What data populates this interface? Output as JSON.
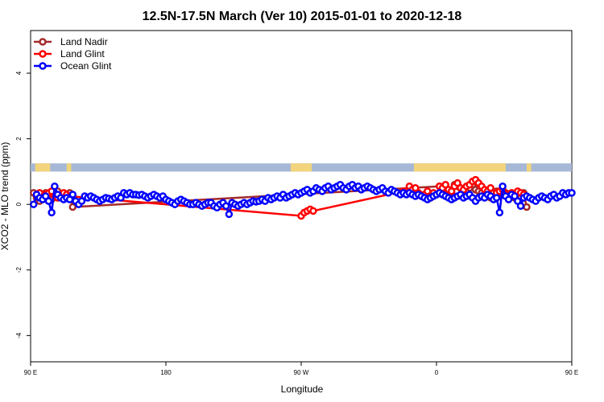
{
  "chart_data": {
    "type": "line",
    "title": "12.5N-17.5N March (Ver 10)   2015-01-01 to 2020-12-18",
    "xlabel": "Longitude",
    "ylabel": "XCO2 - MLO trend (ppm)",
    "xlim": [
      90,
      450
    ],
    "ylim": [
      -4.8,
      5.3
    ],
    "x_ticks": [
      {
        "value": 90,
        "label": "90 E"
      },
      {
        "value": 180,
        "label": "180"
      },
      {
        "value": 270,
        "label": "90 W"
      },
      {
        "value": 360,
        "label": "0"
      },
      {
        "value": 450,
        "label": "90 E"
      },
      {
        "value": 540,
        "label": "180"
      }
    ],
    "y_ticks": [
      {
        "value": 4,
        "label": "4"
      },
      {
        "value": 2,
        "label": "2"
      },
      {
        "value": 0,
        "label": "0"
      },
      {
        "value": -2,
        "label": "-2"
      },
      {
        "value": -4,
        "label": "-4"
      }
    ],
    "legend_position": "top-left",
    "series": [
      {
        "name": "Land Nadir",
        "color": "#a52a2a",
        "x": [
          92,
          94,
          96,
          98,
          100,
          102,
          104,
          106,
          108,
          110,
          116,
          118,
          362,
          364,
          366,
          368,
          370,
          372,
          374,
          376,
          378,
          380,
          382,
          384,
          386,
          388,
          390,
          392,
          394,
          396,
          398,
          400,
          402,
          404,
          406,
          408,
          410,
          412,
          414,
          416,
          418,
          420
        ],
        "y": [
          0.35,
          0.2,
          0.1,
          0.3,
          0.35,
          0.2,
          0.15,
          0.35,
          0.4,
          0.3,
          0.35,
          -0.08,
          0.55,
          0.45,
          0.5,
          0.4,
          0.35,
          0.6,
          0.55,
          0.5,
          0.45,
          0.55,
          0.5,
          0.6,
          0.45,
          0.4,
          0.35,
          0.3,
          0.25,
          0.2,
          0.35,
          0.4,
          0.25,
          0.3,
          0.35,
          0.3,
          0.3,
          0.2,
          0.15,
          0.2,
          0.35,
          -0.08
        ]
      },
      {
        "name": "Land Glint",
        "color": "#ff0000",
        "x": [
          94,
          96,
          98,
          100,
          102,
          104,
          106,
          108,
          110,
          112,
          114,
          116,
          270,
          272,
          274,
          276,
          278,
          338,
          342,
          344,
          346,
          348,
          350,
          352,
          354,
          356,
          358,
          360,
          362,
          364,
          366,
          368,
          370,
          372,
          374,
          376,
          378,
          380,
          382,
          384,
          386,
          388,
          390,
          392,
          394,
          396,
          400,
          402,
          404,
          406,
          408,
          410,
          412,
          414,
          416,
          418
        ],
        "y": [
          0.3,
          0.35,
          0.2,
          0.3,
          0.35,
          0.4,
          0.25,
          0.2,
          0.3,
          0.35,
          0.3,
          0.25,
          -0.35,
          -0.25,
          -0.2,
          -0.15,
          -0.2,
          0.4,
          0.55,
          0.45,
          0.5,
          0.35,
          0.25,
          0.3,
          0.4,
          0.2,
          0.35,
          0.3,
          0.55,
          0.5,
          0.6,
          0.45,
          0.4,
          0.55,
          0.65,
          0.5,
          0.45,
          0.55,
          0.6,
          0.7,
          0.75,
          0.65,
          0.55,
          0.45,
          0.4,
          0.5,
          0.35,
          0.4,
          0.45,
          0.3,
          0.25,
          0.35,
          0.3,
          0.4,
          0.35,
          0.3
        ]
      },
      {
        "name": "Ocean Glint",
        "color": "#0000ff",
        "x": [
          92,
          94,
          96,
          98,
          100,
          102,
          104,
          106,
          108,
          110,
          112,
          114,
          116,
          118,
          120,
          122,
          124,
          126,
          128,
          130,
          132,
          134,
          136,
          138,
          140,
          142,
          144,
          146,
          148,
          150,
          152,
          154,
          156,
          158,
          160,
          162,
          164,
          166,
          168,
          170,
          172,
          174,
          176,
          178,
          180,
          182,
          184,
          186,
          188,
          190,
          192,
          194,
          196,
          198,
          200,
          202,
          204,
          206,
          208,
          210,
          212,
          214,
          216,
          218,
          220,
          222,
          224,
          226,
          228,
          230,
          232,
          234,
          236,
          238,
          240,
          242,
          244,
          246,
          248,
          250,
          252,
          254,
          256,
          258,
          260,
          262,
          264,
          266,
          268,
          270,
          272,
          274,
          276,
          278,
          280,
          282,
          284,
          286,
          288,
          290,
          292,
          294,
          296,
          298,
          300,
          302,
          304,
          306,
          308,
          310,
          312,
          314,
          316,
          318,
          320,
          322,
          324,
          326,
          328,
          330,
          332,
          334,
          336,
          338,
          340,
          342,
          344,
          346,
          348,
          350,
          352,
          354,
          356,
          358,
          360,
          362,
          364,
          366,
          368,
          370,
          372,
          374,
          376,
          378,
          380,
          382,
          384,
          386,
          388,
          390,
          392,
          394,
          396,
          398,
          400,
          402,
          404,
          406,
          408,
          410,
          412,
          414,
          416,
          418,
          420,
          422,
          424,
          426,
          428,
          430,
          432,
          434,
          436,
          438,
          440,
          442,
          444,
          446,
          448,
          450
        ],
        "y": [
          0.0,
          0.3,
          0.2,
          0.15,
          0.25,
          0.1,
          -0.25,
          0.55,
          0.3,
          0.2,
          0.15,
          0.2,
          0.15,
          0.3,
          0.1,
          0.0,
          0.1,
          0.25,
          0.2,
          0.25,
          0.2,
          0.15,
          0.1,
          0.15,
          0.2,
          0.18,
          0.15,
          0.2,
          0.25,
          0.2,
          0.35,
          0.3,
          0.35,
          0.3,
          0.3,
          0.28,
          0.3,
          0.25,
          0.2,
          0.25,
          0.3,
          0.25,
          0.2,
          0.25,
          0.15,
          0.1,
          0.05,
          0.0,
          0.1,
          0.15,
          0.1,
          0.05,
          0.0,
          0.0,
          0.05,
          0.0,
          -0.05,
          0.0,
          0.05,
          0.05,
          -0.05,
          -0.1,
          0.0,
          0.05,
          -0.05,
          -0.3,
          0.05,
          0.0,
          -0.05,
          0.0,
          0.05,
          0.0,
          0.05,
          0.1,
          0.08,
          0.1,
          0.15,
          0.1,
          0.2,
          0.15,
          0.2,
          0.25,
          0.2,
          0.3,
          0.2,
          0.25,
          0.3,
          0.35,
          0.3,
          0.35,
          0.4,
          0.45,
          0.35,
          0.4,
          0.5,
          0.45,
          0.4,
          0.5,
          0.55,
          0.45,
          0.5,
          0.55,
          0.6,
          0.5,
          0.45,
          0.55,
          0.6,
          0.5,
          0.55,
          0.45,
          0.5,
          0.55,
          0.5,
          0.45,
          0.4,
          0.45,
          0.5,
          0.4,
          0.35,
          0.45,
          0.4,
          0.35,
          0.3,
          0.35,
          0.3,
          0.35,
          0.3,
          0.25,
          0.3,
          0.25,
          0.2,
          0.15,
          0.2,
          0.25,
          0.3,
          0.35,
          0.3,
          0.25,
          0.2,
          0.15,
          0.2,
          0.25,
          0.3,
          0.2,
          0.25,
          0.3,
          0.2,
          0.1,
          0.2,
          0.25,
          0.2,
          0.3,
          0.25,
          0.15,
          0.2,
          -0.25,
          0.55,
          0.25,
          0.15,
          0.3,
          0.25,
          0.1,
          -0.05,
          0.2,
          0.25,
          0.2,
          0.15,
          0.1,
          0.2,
          0.25,
          0.2,
          0.15,
          0.25,
          0.3,
          0.2,
          0.25,
          0.35,
          0.3,
          0.35,
          0.35
        ]
      }
    ],
    "map_strip": {
      "ocean_color": "#a6b8d6",
      "land_color": "#f2d47c",
      "y_range": [
        1.0,
        1.25
      ],
      "land_ranges": [
        [
          93,
          103
        ],
        [
          114,
          117
        ],
        [
          263,
          277
        ],
        [
          345,
          406
        ],
        [
          420,
          423
        ]
      ]
    }
  }
}
